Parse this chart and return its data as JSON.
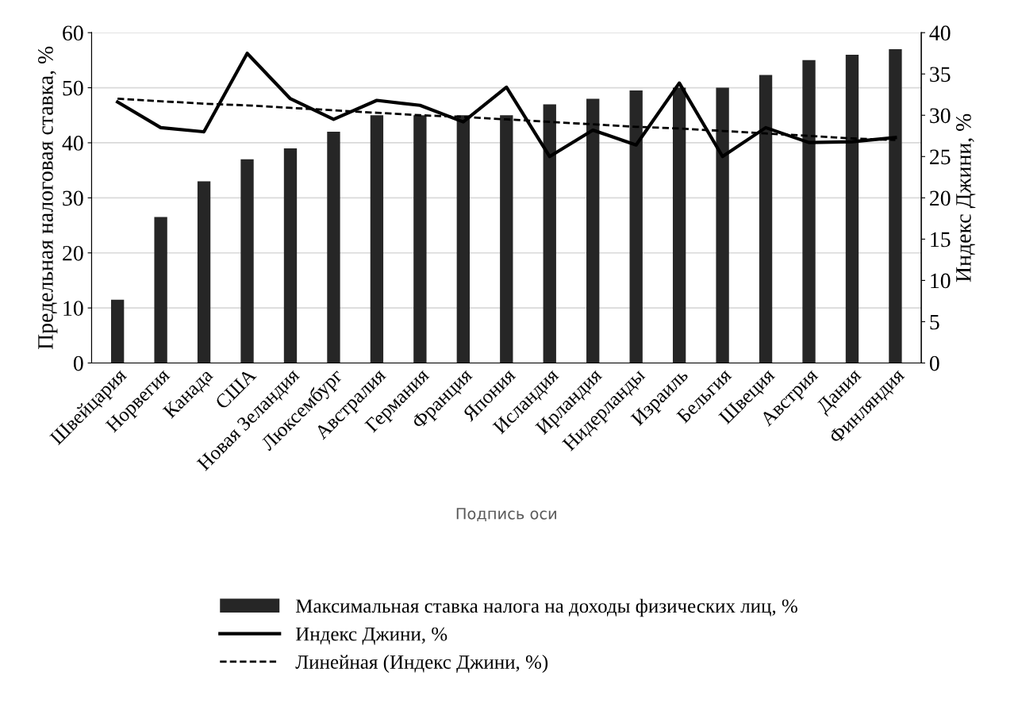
{
  "chart_data": {
    "type": "bar",
    "categories": [
      "Швейцария",
      "Норвегия",
      "Канада",
      "США",
      "Новая Зеландия",
      "Люксембург",
      "Австралия",
      "Германия",
      "Франция",
      "Япония",
      "Исландия",
      "Ирландия",
      "Нидерланды",
      "Израиль",
      "Бельгия",
      "Швеция",
      "Австрия",
      "Дания",
      "Финляндия"
    ],
    "xlabel": "Подпись оси",
    "ylabel": "Предельная налоговая ставка, %",
    "y2label": "Индекс Джини, %",
    "ylim": [
      0,
      60
    ],
    "yticks": [
      0,
      10,
      20,
      30,
      40,
      50,
      60
    ],
    "y2lim": [
      0,
      40
    ],
    "y2ticks": [
      0,
      5,
      10,
      15,
      20,
      25,
      30,
      35,
      40
    ],
    "grid": "y",
    "legend": "bottom",
    "series": [
      {
        "name": "Максимальная ставка налога на доходы физических лиц, %",
        "color": "#262626",
        "values": [
          11.5,
          26.5,
          33,
          37,
          39,
          42,
          45,
          45,
          45,
          45,
          47,
          48,
          49.5,
          50,
          50,
          52.3,
          55,
          56,
          57
        ]
      },
      {
        "name": "Индекс Джини, %",
        "type": "line",
        "axis": "y2",
        "color": "#000000",
        "line_style": "solid",
        "values": [
          31.6,
          28.5,
          28.0,
          37.5,
          32.0,
          29.5,
          31.8,
          31.2,
          29.2,
          33.4,
          25.0,
          28.2,
          26.4,
          33.9,
          25.0,
          28.5,
          26.7,
          26.8,
          27.3
        ]
      },
      {
        "name": "Линейная (Индекс Джини, %)",
        "type": "line",
        "axis": "y2",
        "color": "#000000",
        "line_style": "dashed",
        "values": [
          32.0,
          31.7,
          31.4,
          31.2,
          30.9,
          30.6,
          30.3,
          30.0,
          29.8,
          29.5,
          29.2,
          28.9,
          28.6,
          28.4,
          28.1,
          27.8,
          27.5,
          27.2,
          27.0
        ]
      }
    ]
  }
}
